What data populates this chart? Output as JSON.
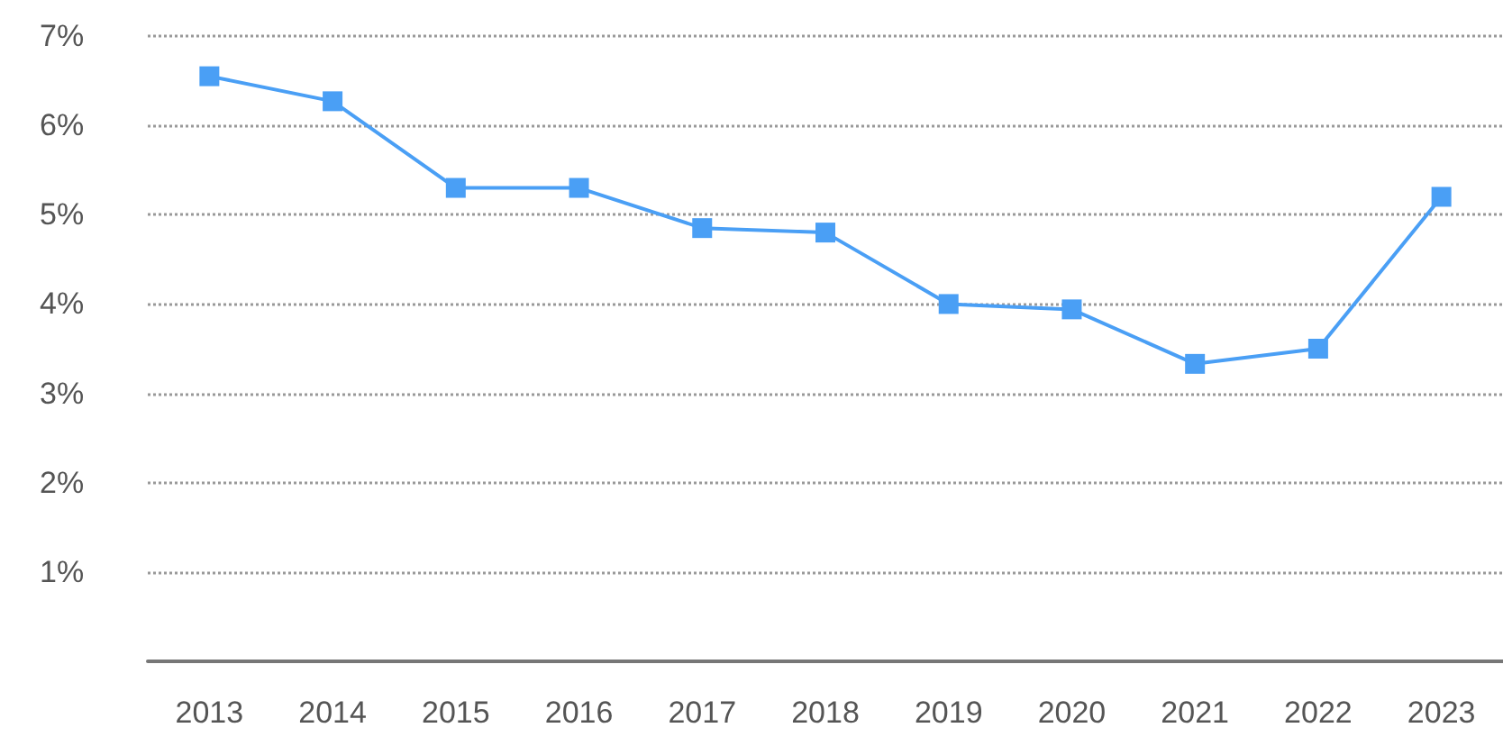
{
  "chart_data": {
    "type": "line",
    "categories": [
      "2013",
      "2014",
      "2015",
      "2016",
      "2017",
      "2018",
      "2019",
      "2020",
      "2021",
      "2022",
      "2023"
    ],
    "series": [
      {
        "color": "#4a9ff5",
        "values": [
          6.55,
          6.27,
          5.3,
          5.3,
          4.85,
          4.8,
          4.0,
          3.94,
          3.33,
          3.5,
          5.2
        ]
      }
    ],
    "ylim": [
      0,
      7
    ],
    "yticks": [
      {
        "value": 0,
        "label": null
      },
      {
        "value": 1,
        "label": "1%"
      },
      {
        "value": 2,
        "label": "2%"
      },
      {
        "value": 3,
        "label": "3%"
      },
      {
        "value": 4,
        "label": "4%"
      },
      {
        "value": 5,
        "label": "5%"
      },
      {
        "value": 6,
        "label": "6%"
      },
      {
        "value": 7,
        "label": "7%"
      }
    ],
    "grid": "y",
    "marker": "square",
    "line_style": "solid"
  }
}
